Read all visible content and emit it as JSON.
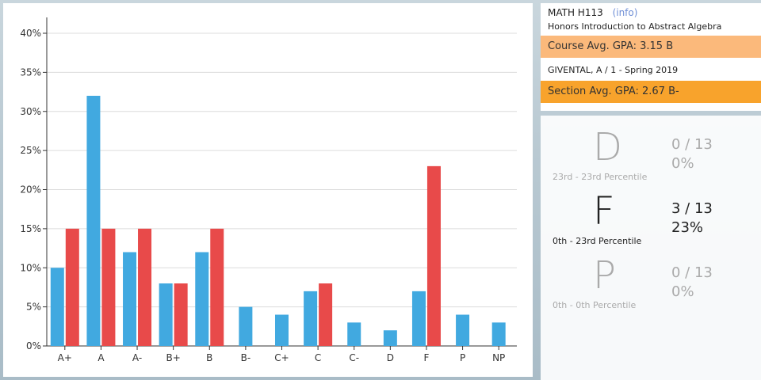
{
  "chart_data": {
    "type": "bar",
    "categories": [
      "A+",
      "A",
      "A-",
      "B+",
      "B",
      "B-",
      "C+",
      "C",
      "C-",
      "D",
      "F",
      "P",
      "NP"
    ],
    "series": [
      {
        "color": "#41a9e0",
        "values": [
          10,
          32,
          12,
          8,
          12,
          5,
          4,
          7,
          3,
          2,
          7,
          4,
          3
        ]
      },
      {
        "color": "#e84a4a",
        "values": [
          15,
          15,
          15,
          8,
          15,
          0,
          0,
          8,
          0,
          0,
          23,
          0,
          0
        ]
      }
    ],
    "y_ticks": [
      "0%",
      "5%",
      "10%",
      "15%",
      "20%",
      "25%",
      "30%",
      "35%",
      "40%"
    ],
    "ylim": [
      0,
      40
    ],
    "grid": true
  },
  "course": {
    "code": "MATH H113",
    "info_link": "(info)",
    "title": "Honors Introduction to Abstract Algebra",
    "avg_gpa_text": "Course Avg. GPA:  3.15  B",
    "instructor": "GIVENTAL, A / 1 - Spring 2019",
    "section_gpa_text": "Section Avg. GPA:  2.67  B-"
  },
  "grades": [
    {
      "letter": "D",
      "percentile": "23rd  -  23rd Percentile",
      "count": "0 / 13",
      "pct": "0%"
    },
    {
      "letter": "F",
      "percentile": "0th  -  23rd Percentile",
      "count": "3 / 13",
      "pct": "23%"
    },
    {
      "letter": "P",
      "percentile": "0th  -  0th Percentile",
      "count": "0 / 13",
      "pct": "0%"
    }
  ],
  "colors": {
    "course_bar": "#fbb97b",
    "section_bar": "#f8a32c"
  }
}
